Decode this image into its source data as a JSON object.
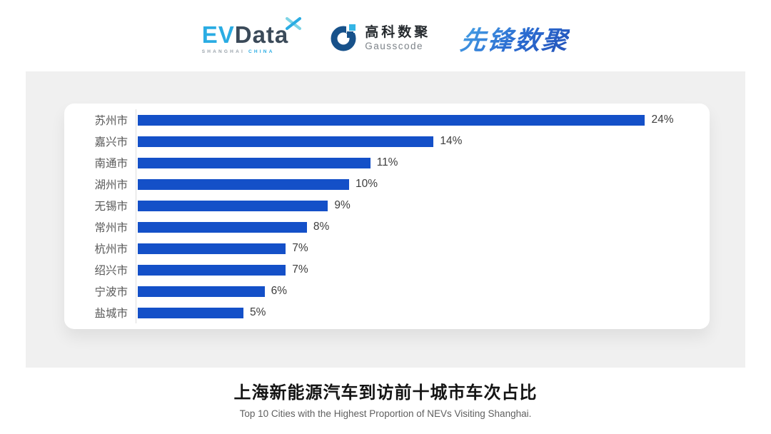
{
  "header": {
    "evdata": {
      "ev": "EV",
      "data": "Data",
      "sub_left": "SHANGHAI",
      "sub_right": "CHINA"
    },
    "gausscode": {
      "cn": "高科数聚",
      "en": "Gausscode"
    },
    "xianfeng": {
      "text": "先锋数聚"
    }
  },
  "chart_data": {
    "type": "bar",
    "orientation": "horizontal",
    "title": "上海新能源汽车到访前十城市车次占比",
    "categories": [
      "苏州市",
      "嘉兴市",
      "南通市",
      "湖州市",
      "无锡市",
      "常州市",
      "杭州市",
      "绍兴市",
      "宁波市",
      "盐城市"
    ],
    "values": [
      24,
      14,
      11,
      10,
      9,
      8,
      7,
      7,
      6,
      5
    ],
    "value_labels": [
      "24%",
      "14%",
      "11%",
      "10%",
      "9%",
      "8%",
      "7%",
      "7%",
      "6%",
      "5%"
    ],
    "unit": "%",
    "xlim": [
      0,
      24
    ],
    "grid": false,
    "legend": false,
    "bar_color": "#1450c8",
    "axis_line_color": "#dcdcdc",
    "category_label_color": "#595959",
    "value_label_color": "#3d3d3d"
  },
  "footer": {
    "title": "上海新能源汽车到访前十城市车次占比",
    "subtitle": "Top 10 Cities with the Highest Proportion of  NEVs Visiting Shanghai."
  },
  "colors": {
    "panel_bg": "#f0f0f0",
    "card_bg": "#ffffff",
    "evdata_blue": "#2aace3",
    "evdata_dark": "#3b4a59",
    "gauss_navy": "#17518a",
    "gauss_light_blue": "#35b5e5",
    "xianfeng_blue": "#2a6ad0"
  }
}
